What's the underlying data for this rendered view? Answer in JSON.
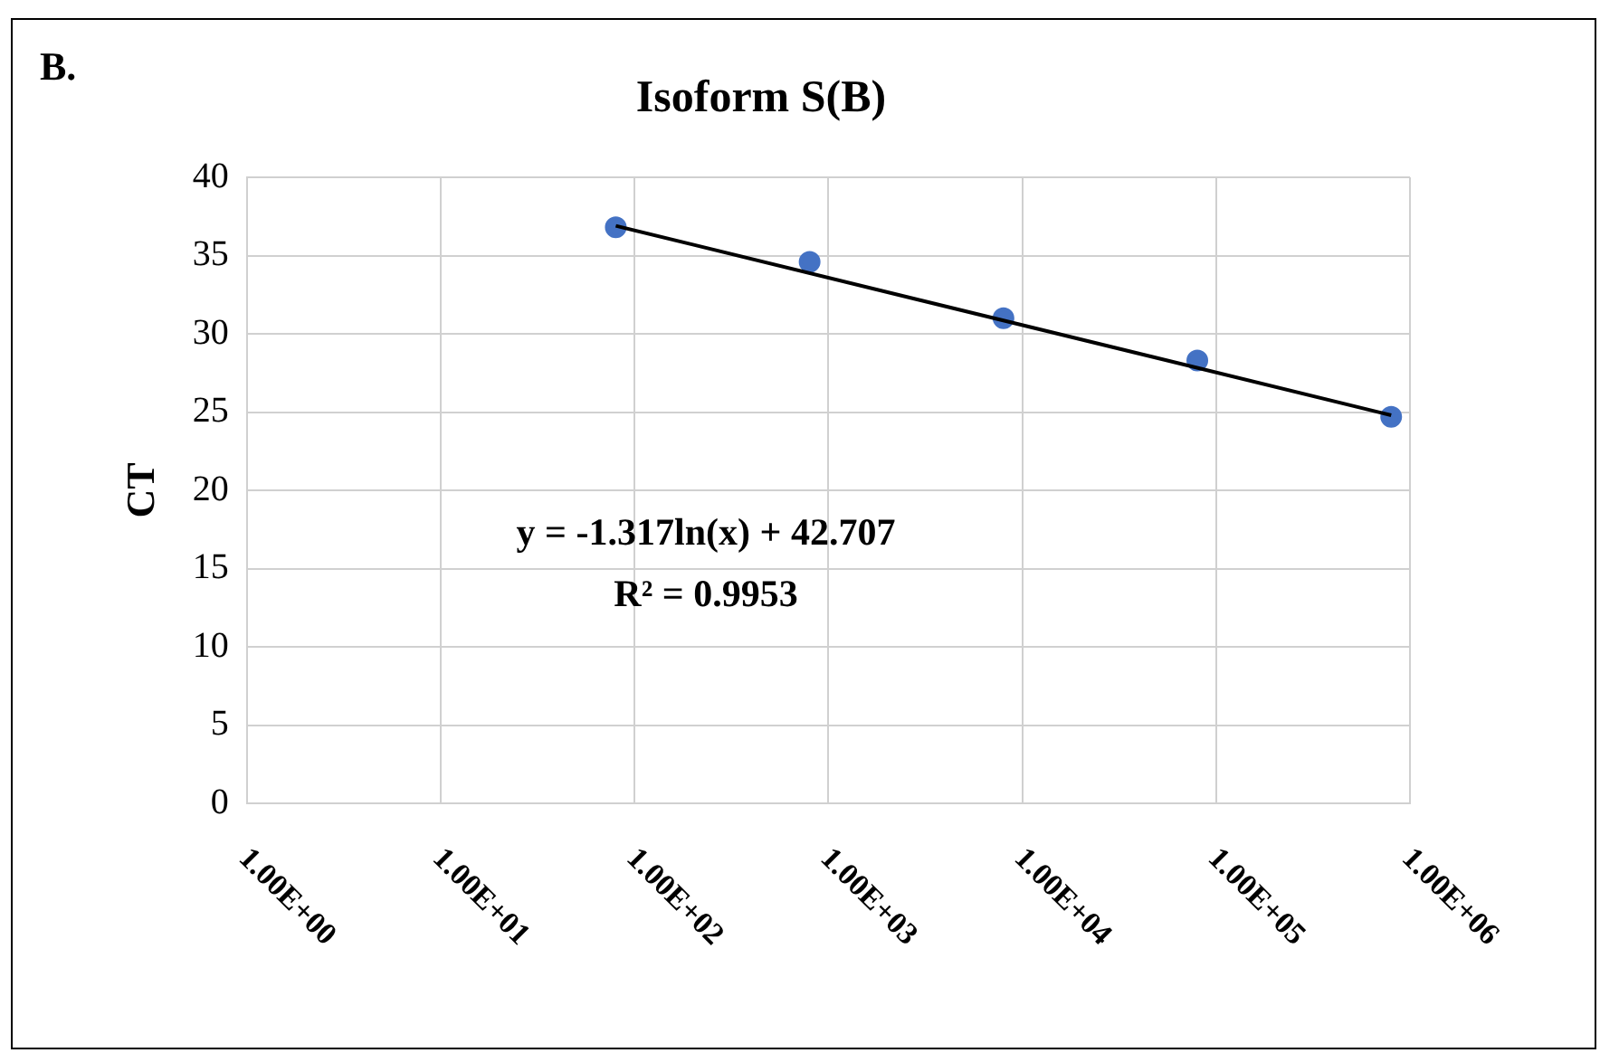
{
  "chart_data": {
    "type": "scatter",
    "title": "Isoform S(B)",
    "ylabel": "CT",
    "annotations": [
      "B.",
      "y = -1.317ln(x) + 42.707",
      "R² = 0.9953"
    ],
    "series": [
      {
        "color": "#4472c4",
        "x": [
          80,
          800,
          8000,
          80000,
          800000
        ],
        "values": [
          36.8,
          34.6,
          31.0,
          28.3,
          24.7
        ],
        "marker": "circle"
      },
      {
        "type": "line",
        "color": "#000000",
        "x": [
          80,
          800000
        ],
        "values": [
          36.9,
          24.8
        ],
        "marker": "none",
        "line_style": "solid"
      }
    ],
    "log": "x",
    "xlim": [
      1,
      1000000
    ],
    "xticks": [
      {
        "value": 1,
        "label": "1.00E+00"
      },
      {
        "value": 10,
        "label": "1.00E+01"
      },
      {
        "value": 100,
        "label": "1.00E+02"
      },
      {
        "value": 1000,
        "label": "1.00E+03"
      },
      {
        "value": 10000,
        "label": "1.00E+04"
      },
      {
        "value": 100000,
        "label": "1.00E+05"
      },
      {
        "value": 1000000,
        "label": "1.00E+06"
      }
    ],
    "ylim": [
      0,
      40
    ],
    "yticks": [
      0,
      5,
      10,
      15,
      20,
      25,
      30,
      35,
      40
    ],
    "grid": true,
    "legend": false
  }
}
